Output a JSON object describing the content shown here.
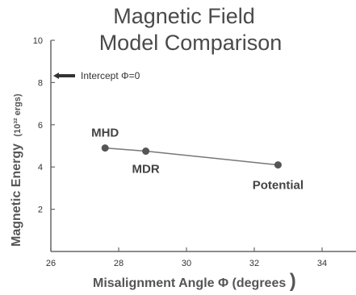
{
  "chart_data": {
    "type": "line",
    "title_line1": "Magnetic Field",
    "title_line2": "Model Comparison",
    "xlabel": "Misalignment Angle Φ (degrees",
    "xlabel_paren": ")",
    "ylabel_main": "Magnetic Energy",
    "ylabel_unit": "(10³² ergs)",
    "xlim": [
      26,
      35
    ],
    "ylim": [
      0,
      10
    ],
    "x_ticks": [
      "26",
      "28",
      "30",
      "32",
      "34"
    ],
    "y_ticks": [
      "2",
      "4",
      "6",
      "8",
      "10"
    ],
    "points": [
      {
        "label": "MHD",
        "x": 27.6,
        "y": 4.9
      },
      {
        "label": "MDR",
        "x": 28.8,
        "y": 4.75
      },
      {
        "label": "Potential",
        "x": 32.7,
        "y": 4.1
      }
    ],
    "annotation": {
      "text": "Intercept Φ=0",
      "y": 8.4
    }
  }
}
